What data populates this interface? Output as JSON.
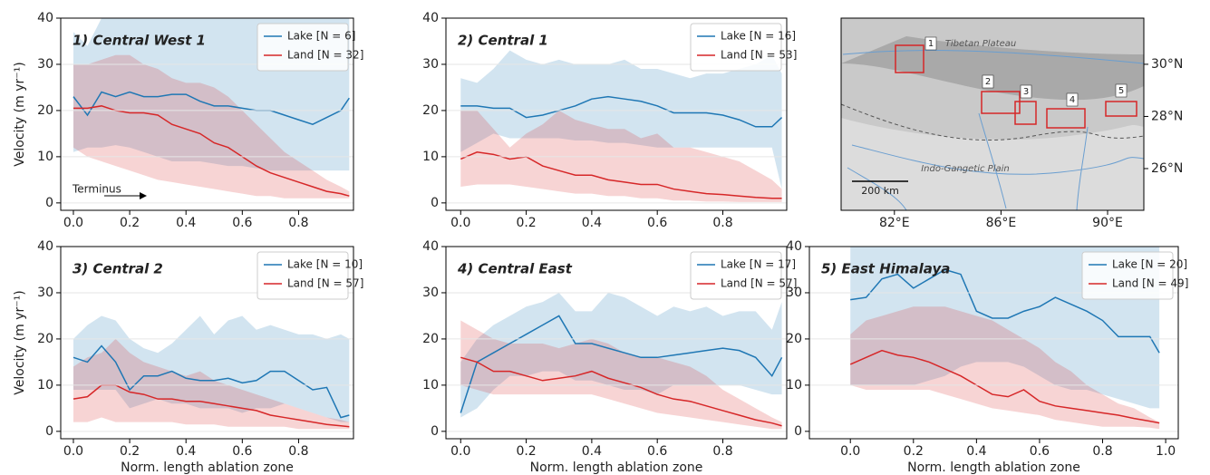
{
  "chart_data": [
    {
      "type": "line",
      "title": "1) Central West 1",
      "ylabel": "Velocity (m yr⁻¹)",
      "annotation": "Terminus",
      "grid": true,
      "legend": "upper right",
      "x": [
        0,
        0.05,
        0.1,
        0.15,
        0.2,
        0.25,
        0.3,
        0.35,
        0.4,
        0.45,
        0.5,
        0.55,
        0.6,
        0.65,
        0.7,
        0.75,
        0.8,
        0.85,
        0.9,
        0.95,
        0.98
      ],
      "xlim": [
        -0.045,
        0.995
      ],
      "xticks": [
        {
          "value": 0,
          "label": "0.0"
        },
        {
          "value": 0.2,
          "label": "0.2"
        },
        {
          "value": 0.4,
          "label": "0.4"
        },
        {
          "value": 0.6,
          "label": "0.6"
        },
        {
          "value": 0.8,
          "label": "0.8"
        }
      ],
      "ylim": [
        -1.6,
        40
      ],
      "yticks": [
        0,
        10,
        20,
        30,
        40
      ],
      "series": [
        {
          "name": "Lake [N = 6]",
          "color": "#1f77b4",
          "values": [
            23,
            19,
            24,
            23,
            24,
            23,
            23,
            23.5,
            23.5,
            22,
            21,
            21,
            20.5,
            20,
            20,
            19,
            18,
            17,
            18.5,
            20,
            22.7
          ],
          "lower": [
            11,
            12,
            12,
            12.5,
            12,
            11,
            10,
            9,
            9,
            9,
            8.5,
            8,
            8,
            7.5,
            7,
            7,
            7,
            7,
            7,
            7,
            7
          ],
          "upper": [
            37,
            34,
            40,
            43,
            45,
            45,
            45,
            45,
            45,
            45,
            45,
            45,
            45,
            45,
            45,
            45,
            45,
            45,
            45,
            45,
            45
          ]
        },
        {
          "name": "Land [N = 32]",
          "color": "#d62728",
          "values": [
            20.5,
            20.5,
            21,
            20,
            19.5,
            19.5,
            19,
            17,
            16,
            15,
            13,
            12,
            10,
            8,
            6.5,
            5.5,
            4.5,
            3.5,
            2.5,
            2,
            1.5
          ],
          "lower": [
            12,
            10,
            9,
            8,
            7,
            6,
            5,
            4.5,
            4,
            3.5,
            3,
            2.5,
            2,
            1.5,
            1.5,
            1,
            1,
            1,
            1,
            1,
            1
          ],
          "upper": [
            30,
            30,
            31,
            32,
            32,
            30,
            29,
            27,
            26,
            26,
            25,
            23,
            20,
            17,
            14,
            11,
            9,
            7,
            5,
            3.5,
            2.5
          ]
        }
      ]
    },
    {
      "type": "line",
      "title": "2) Central 1",
      "grid": true,
      "legend": "upper right",
      "x": [
        0,
        0.05,
        0.1,
        0.15,
        0.2,
        0.25,
        0.3,
        0.35,
        0.4,
        0.45,
        0.5,
        0.55,
        0.6,
        0.65,
        0.7,
        0.75,
        0.8,
        0.85,
        0.9,
        0.95,
        0.98
      ],
      "xlim": [
        -0.045,
        0.995
      ],
      "xticks": [
        {
          "value": 0,
          "label": "0.0"
        },
        {
          "value": 0.2,
          "label": "0.2"
        },
        {
          "value": 0.4,
          "label": "0.4"
        },
        {
          "value": 0.6,
          "label": "0.6"
        },
        {
          "value": 0.8,
          "label": "0.8"
        }
      ],
      "ylim": [
        -1.6,
        40
      ],
      "yticks": [
        0,
        10,
        20,
        30,
        40
      ],
      "series": [
        {
          "name": "Lake [N = 16]",
          "color": "#1f77b4",
          "values": [
            21,
            21,
            20.5,
            20.5,
            18.5,
            19,
            20,
            21,
            22.5,
            23,
            22.5,
            22,
            21,
            19.5,
            19.5,
            19.5,
            19,
            18,
            16.5,
            16.5,
            18.5
          ],
          "lower": [
            11,
            13,
            15,
            14,
            14,
            14,
            14,
            13.5,
            13.5,
            13,
            13,
            12.5,
            12,
            12,
            12,
            12,
            12,
            12,
            12,
            12,
            3
          ],
          "upper": [
            27,
            26,
            29,
            33,
            31,
            30,
            31,
            30,
            30,
            30,
            31,
            29,
            29,
            28,
            27,
            28,
            28,
            29,
            30,
            32,
            28
          ]
        },
        {
          "name": "Land [N = 53]",
          "color": "#d62728",
          "values": [
            9.5,
            11,
            10.5,
            9.5,
            10,
            8,
            7,
            6,
            6,
            5,
            4.5,
            4,
            4,
            3,
            2.5,
            2,
            1.8,
            1.5,
            1.2,
            1,
            1
          ],
          "lower": [
            3.5,
            4,
            4,
            4,
            3.5,
            3,
            2.5,
            2,
            2,
            1.5,
            1.5,
            1,
            1,
            0.5,
            0.5,
            0.3,
            0.3,
            0.2,
            0.2,
            0.2,
            0.2
          ],
          "upper": [
            20,
            20,
            16,
            12,
            15,
            17,
            20,
            18,
            17,
            16,
            16,
            14,
            15,
            12,
            12,
            11,
            10,
            9,
            7,
            5,
            3
          ]
        }
      ]
    },
    {
      "type": "map",
      "labels": [
        "Tibetan Plateau",
        "Indo-Gangetic Plain"
      ],
      "box_labels": [
        "1",
        "2",
        "3",
        "4",
        "5"
      ],
      "scale_label": "200 km",
      "xlim": [
        80,
        91.36
      ],
      "xticks": [
        {
          "value": 82,
          "label": "82°E"
        },
        {
          "value": 86,
          "label": "86°E"
        },
        {
          "value": 90,
          "label": "90°E"
        }
      ],
      "ylim": [
        24.4,
        31.77
      ],
      "yticks": [
        {
          "value": 26,
          "label": "26°N"
        },
        {
          "value": 28,
          "label": "28°N"
        },
        {
          "value": 30,
          "label": "30°N"
        }
      ]
    },
    {
      "type": "line",
      "title": "3) Central 2",
      "ylabel": "Velocity (m yr⁻¹)",
      "xlabel": "Norm. length ablation zone",
      "grid": true,
      "legend": "upper right",
      "x": [
        0,
        0.05,
        0.1,
        0.15,
        0.2,
        0.25,
        0.3,
        0.35,
        0.4,
        0.45,
        0.5,
        0.55,
        0.6,
        0.65,
        0.7,
        0.75,
        0.8,
        0.85,
        0.9,
        0.95,
        0.98
      ],
      "xlim": [
        -0.045,
        0.995
      ],
      "xticks": [
        {
          "value": 0,
          "label": "0.0"
        },
        {
          "value": 0.2,
          "label": "0.2"
        },
        {
          "value": 0.4,
          "label": "0.4"
        },
        {
          "value": 0.6,
          "label": "0.6"
        },
        {
          "value": 0.8,
          "label": "0.8"
        }
      ],
      "ylim": [
        -1.6,
        40
      ],
      "yticks": [
        0,
        10,
        20,
        30,
        40
      ],
      "series": [
        {
          "name": "Lake [N = 10]",
          "color": "#1f77b4",
          "values": [
            16,
            15,
            18.5,
            15,
            9,
            12,
            12,
            13,
            11.5,
            11,
            11,
            11.5,
            10.5,
            11,
            13,
            13,
            11,
            9,
            9.5,
            3,
            3.5
          ],
          "lower": [
            9,
            9,
            9,
            9,
            5,
            6,
            7,
            6,
            6,
            5,
            5,
            5,
            4,
            5,
            5,
            6,
            5,
            4,
            3,
            2,
            2
          ],
          "upper": [
            20,
            23,
            25,
            24,
            20,
            18,
            17,
            19,
            22,
            25,
            21,
            24,
            25,
            22,
            23,
            22,
            21,
            21,
            20,
            21,
            20
          ]
        },
        {
          "name": "Land [N = 57]",
          "color": "#d62728",
          "values": [
            7,
            7.5,
            10,
            10,
            8.5,
            8,
            7,
            7,
            6.5,
            6.5,
            6,
            5.5,
            5,
            4.5,
            3.5,
            3,
            2.5,
            2,
            1.5,
            1.2,
            1
          ],
          "lower": [
            2,
            2,
            3,
            2,
            2,
            2,
            2,
            2,
            1.5,
            1.5,
            1.5,
            1,
            1,
            1,
            1,
            1,
            0.5,
            0.5,
            0.5,
            0.5,
            0.5
          ],
          "upper": [
            14,
            16,
            17,
            20,
            17,
            15,
            14,
            13,
            12,
            13,
            11,
            10,
            9,
            8,
            7,
            6,
            5,
            4,
            3,
            2.5,
            2
          ]
        }
      ]
    },
    {
      "type": "line",
      "title": "4) Central East",
      "xlabel": "Norm. length ablation zone",
      "grid": true,
      "legend": "upper right",
      "x": [
        0,
        0.05,
        0.1,
        0.15,
        0.2,
        0.25,
        0.3,
        0.35,
        0.4,
        0.45,
        0.5,
        0.55,
        0.6,
        0.65,
        0.7,
        0.75,
        0.8,
        0.85,
        0.9,
        0.95,
        0.98
      ],
      "xlim": [
        -0.045,
        0.995
      ],
      "xticks": [
        {
          "value": 0,
          "label": "0.0"
        },
        {
          "value": 0.2,
          "label": "0.2"
        },
        {
          "value": 0.4,
          "label": "0.4"
        },
        {
          "value": 0.6,
          "label": "0.6"
        },
        {
          "value": 0.8,
          "label": "0.8"
        }
      ],
      "ylim": [
        -1.6,
        40
      ],
      "yticks": [
        0,
        10,
        20,
        30,
        40
      ],
      "series": [
        {
          "name": "Lake [N = 17]",
          "color": "#1f77b4",
          "values": [
            4,
            15,
            17,
            19,
            21,
            23,
            25,
            19,
            19,
            18,
            17,
            16,
            16,
            16.5,
            17,
            17.5,
            18,
            17.5,
            16,
            12,
            16
          ],
          "lower": [
            3,
            5,
            9,
            12,
            12,
            13,
            13,
            11,
            11,
            10,
            9,
            9,
            8,
            10,
            10,
            10,
            10,
            10,
            9,
            8,
            8
          ],
          "upper": [
            15,
            20,
            23,
            25,
            27,
            28,
            30,
            26,
            26,
            30,
            29,
            27,
            25,
            27,
            26,
            27,
            25,
            26,
            26,
            22,
            28
          ]
        },
        {
          "name": "Land [N = 57]",
          "color": "#d62728",
          "values": [
            16,
            15,
            13,
            13,
            12,
            11,
            11.5,
            12,
            13,
            11.5,
            10.5,
            9.5,
            8,
            7,
            6.5,
            5.5,
            4.5,
            3.5,
            2.5,
            1.8,
            1.2
          ],
          "lower": [
            10,
            9,
            8,
            8,
            8,
            8,
            8,
            8,
            8,
            7,
            6,
            5,
            4,
            3.5,
            3,
            2.5,
            2,
            1.5,
            1,
            0.5,
            0.5
          ],
          "upper": [
            24,
            22,
            20,
            19,
            19,
            19,
            18,
            19,
            20,
            19,
            17,
            16,
            16,
            15,
            14,
            12,
            9,
            7,
            5,
            3,
            2
          ]
        }
      ]
    },
    {
      "type": "line",
      "title": "5) East Himalaya",
      "xlabel": "Norm. length ablation zone",
      "grid": true,
      "legend": "upper right",
      "x": [
        0,
        0.05,
        0.1,
        0.15,
        0.2,
        0.25,
        0.3,
        0.35,
        0.4,
        0.45,
        0.5,
        0.55,
        0.6,
        0.65,
        0.7,
        0.75,
        0.8,
        0.85,
        0.9,
        0.95,
        0.98
      ],
      "xlim": [
        -0.13,
        1.04
      ],
      "xticks": [
        {
          "value": 0,
          "label": "0.0"
        },
        {
          "value": 0.2,
          "label": "0.2"
        },
        {
          "value": 0.4,
          "label": "0.4"
        },
        {
          "value": 0.6,
          "label": "0.6"
        },
        {
          "value": 0.8,
          "label": "0.8"
        },
        {
          "value": 1,
          "label": "1.0"
        }
      ],
      "ylim": [
        -1.6,
        40
      ],
      "yticks": [
        0,
        10,
        20,
        30,
        40
      ],
      "series": [
        {
          "name": "Lake [N = 20]",
          "color": "#1f77b4",
          "values": [
            28.5,
            29,
            33,
            34,
            31,
            33,
            35,
            34,
            26,
            24.5,
            24.5,
            26,
            27,
            29,
            27.5,
            26,
            24,
            20.5,
            20.5,
            20.5,
            17
          ],
          "lower": [
            10,
            10,
            10,
            10,
            10,
            11,
            12,
            14,
            15,
            15,
            15,
            14,
            12,
            10,
            9,
            9,
            8,
            7,
            6,
            5,
            5
          ],
          "upper": [
            45,
            45,
            45,
            45,
            45,
            45,
            45,
            45,
            45,
            45,
            45,
            45,
            45,
            45,
            45,
            45,
            45,
            45,
            45,
            45,
            45
          ]
        },
        {
          "name": "Land [N = 49]",
          "color": "#d62728",
          "values": [
            14.5,
            16,
            17.5,
            16.5,
            16,
            15,
            13.5,
            12,
            10,
            8,
            7.5,
            9,
            6.5,
            5.5,
            5,
            4.5,
            4,
            3.5,
            2.8,
            2.2,
            1.8
          ],
          "lower": [
            10,
            9,
            9,
            9,
            9,
            9,
            8,
            7,
            6,
            5,
            4.5,
            4,
            3.5,
            2.5,
            2,
            1.5,
            1,
            1,
            1,
            0.8,
            0.5
          ],
          "upper": [
            21,
            24,
            25,
            26,
            27,
            27,
            27,
            26,
            25,
            24,
            22,
            20,
            18,
            15,
            13,
            10,
            8,
            6,
            5,
            3,
            2
          ]
        }
      ]
    }
  ]
}
